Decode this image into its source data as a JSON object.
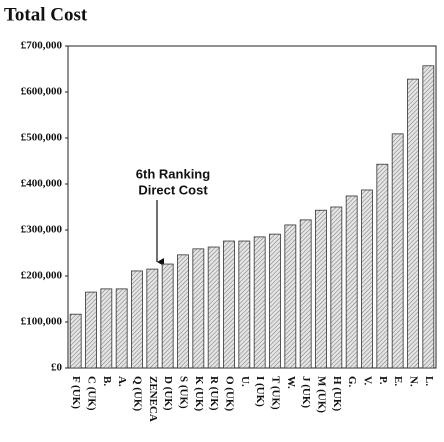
{
  "chart_data": {
    "type": "bar",
    "title": "Total Cost",
    "categories": [
      "F (UK)",
      "C (UK)",
      "B.",
      "A.",
      "Q (UK)",
      "ZENECA",
      "D (UK)",
      "S (UK)",
      "K (UK)",
      "R (UK)",
      "O (UK)",
      "U.",
      "I (UK)",
      "T (UK)",
      "W.",
      "J (UK)",
      "M (UK)",
      "H (UK)",
      "G.",
      "V.",
      "P.",
      "E.",
      "N.",
      "L."
    ],
    "values": [
      117000,
      165000,
      172000,
      172000,
      211000,
      215000,
      226000,
      246000,
      259000,
      263000,
      276000,
      276000,
      285000,
      291000,
      311000,
      322000,
      343000,
      350000,
      374000,
      387000,
      443000,
      509000,
      628000,
      657000
    ],
    "color": "#bbbbbb",
    "ylim": [
      0,
      700000
    ],
    "yticks": [
      {
        "value": 0,
        "label": "£0"
      },
      {
        "value": 100000,
        "label": "£100,000"
      },
      {
        "value": 200000,
        "label": "£200,000"
      },
      {
        "value": 300000,
        "label": "£300,000"
      },
      {
        "value": 400000,
        "label": "£400,000"
      },
      {
        "value": 500000,
        "label": "£500,000"
      },
      {
        "value": 600000,
        "label": "£600,000"
      },
      {
        "value": 700000,
        "label": "£700,000"
      }
    ],
    "annotation": [
      "6th Ranking",
      "Direct Cost"
    ]
  }
}
